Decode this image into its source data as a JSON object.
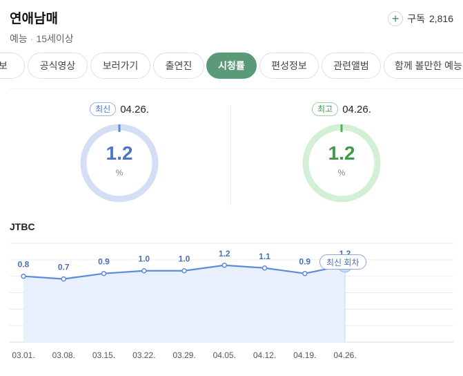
{
  "header": {
    "title": "연애남매",
    "genre": "예능",
    "rating": "15세이상",
    "subscribe_label": "구독",
    "subscriber_count": "2,816"
  },
  "tabs": [
    {
      "label": "정보"
    },
    {
      "label": "공식영상"
    },
    {
      "label": "보러가기"
    },
    {
      "label": "출연진"
    },
    {
      "label": "시청률"
    },
    {
      "label": "편성정보"
    },
    {
      "label": "관련앨범"
    },
    {
      "label": "함께 볼만한 예능"
    }
  ],
  "active_tab_index": 4,
  "stats": {
    "latest": {
      "tag": "최신",
      "date": "04.26.",
      "value": "1.2",
      "unit": "%"
    },
    "highest": {
      "tag": "최고",
      "date": "04.26.",
      "value": "1.2",
      "unit": "%"
    }
  },
  "colors": {
    "accent_green": "#5b9a78",
    "series_blue": "#5b8bd9",
    "gauge_blue_track": "#d4def5",
    "gauge_green_track": "#d3efd5",
    "gauge_green": "#4bb356"
  },
  "chart_data": {
    "type": "area",
    "title": "JTBC",
    "categories": [
      "03.01.",
      "03.08.",
      "03.15.",
      "03.22.",
      "03.29.",
      "04.05.",
      "04.12.",
      "04.19.",
      "04.26."
    ],
    "values": [
      0.8,
      0.7,
      0.9,
      1.0,
      1.0,
      1.2,
      1.1,
      0.9,
      1.2
    ],
    "value_labels": [
      "0.8",
      "0.7",
      "0.9",
      "1.0",
      "1.0",
      "1.2",
      "1.1",
      "0.9",
      "1.2"
    ],
    "ylim": [
      -1.6,
      2.0
    ],
    "grid": true,
    "highlight": {
      "index": 8,
      "label": "최신 회차"
    }
  }
}
